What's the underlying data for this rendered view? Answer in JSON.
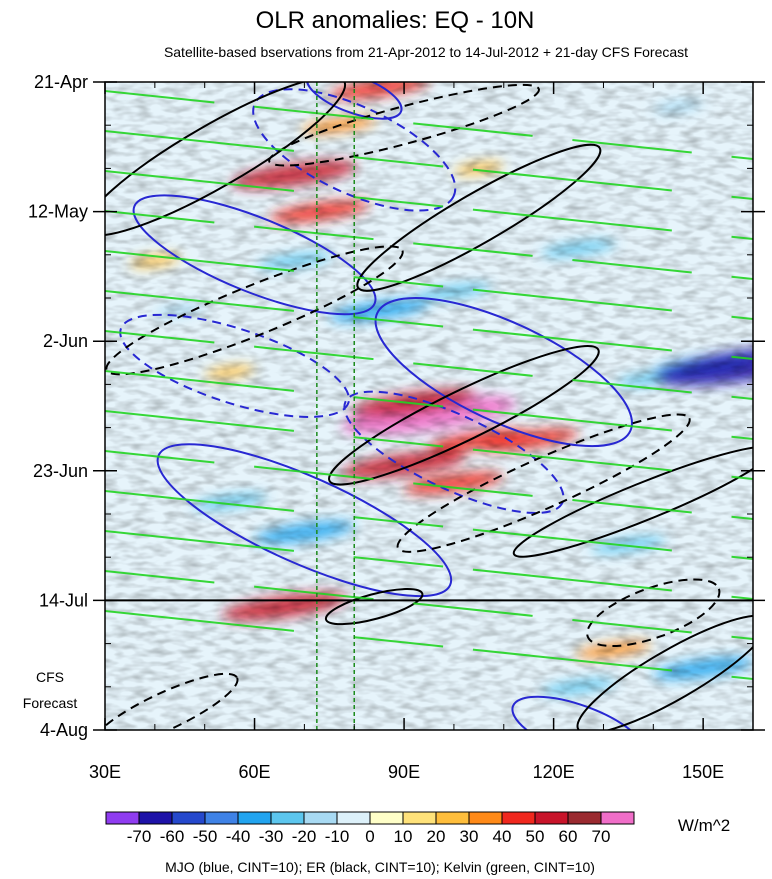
{
  "chart_data": {
    "type": "heatmap",
    "title": "OLR anomalies: EQ - 10N",
    "subtitle": "Satellite-based bservations from 21-Apr-2012 to 14-Jul-2012 + 21-day CFS Forecast",
    "x_axis": {
      "range": [
        30,
        160
      ],
      "unit": "degrees E",
      "ticks": [
        {
          "value": 30,
          "label": "30E"
        },
        {
          "value": 60,
          "label": "60E"
        },
        {
          "value": 90,
          "label": "90E"
        },
        {
          "value": 120,
          "label": "120E"
        },
        {
          "value": 150,
          "label": "150E"
        }
      ]
    },
    "y_axis": {
      "range": [
        "21-Apr-2012",
        "4-Aug-2012"
      ],
      "direction": "time increases downward",
      "ticks": [
        {
          "value": "2012-04-21",
          "label": "21-Apr"
        },
        {
          "value": "2012-05-12",
          "label": "12-May"
        },
        {
          "value": "2012-06-02",
          "label": "2-Jun"
        },
        {
          "value": "2012-06-23",
          "label": "23-Jun"
        },
        {
          "value": "2012-07-14",
          "label": "14-Jul"
        },
        {
          "value": "2012-08-04",
          "label": "4-Aug"
        }
      ]
    },
    "forecast": {
      "start": "2012-07-14",
      "label_line1": "CFS",
      "label_line2": "Forecast"
    },
    "reference_longitudes": [
      72.5,
      80
    ],
    "colorbar": {
      "unit": "W/m^2",
      "levels": [
        -70,
        -60,
        -50,
        -40,
        -30,
        -20,
        -10,
        0,
        10,
        20,
        30,
        40,
        50,
        60,
        70
      ],
      "level_labels": [
        "-70",
        "-60",
        "-50",
        "-40",
        "-30",
        "-20",
        "-10",
        "0",
        "10",
        "20",
        "30",
        "40",
        "50",
        "60",
        "70"
      ],
      "colors": [
        "#8f3cf0",
        "#1e12a8",
        "#2548cc",
        "#3f82e6",
        "#22a4ef",
        "#5cc6ee",
        "#a8daf3",
        "#ddf1fa",
        "#ffffc8",
        "#ffe27a",
        "#ffbe3c",
        "#ff8a18",
        "#f0281e",
        "#c8142a",
        "#9a2a30",
        "#f06ec8"
      ]
    },
    "contour_legend": "MJO (blue, CINT=10); ER (black, CINT=10); Kelvin (green, CINT=10)",
    "series": [
      {
        "name": "MJO",
        "color": "#2828d2",
        "cint": 10
      },
      {
        "name": "ER",
        "color": "#000000",
        "cint": 10
      },
      {
        "name": "Kelvin",
        "color": "#22d422",
        "cint": 10
      }
    ],
    "anomaly_features": [
      {
        "lon": 68,
        "date": "2012-05-06",
        "value": 50
      },
      {
        "lon": 73,
        "date": "2012-05-12",
        "value": 40
      },
      {
        "lon": 77,
        "date": "2012-04-28",
        "value": 30
      },
      {
        "lon": 85,
        "date": "2012-04-22",
        "value": 40
      },
      {
        "lon": 95,
        "date": "2012-06-14",
        "value": 70
      },
      {
        "lon": 92,
        "date": "2012-06-12",
        "value": 50
      },
      {
        "lon": 105,
        "date": "2012-06-18",
        "value": 40
      },
      {
        "lon": 115,
        "date": "2012-06-18",
        "value": 40
      },
      {
        "lon": 90,
        "date": "2012-06-22",
        "value": 50
      },
      {
        "lon": 100,
        "date": "2012-06-25",
        "value": 40
      },
      {
        "lon": 66,
        "date": "2012-07-15",
        "value": 50
      },
      {
        "lon": 132,
        "date": "2012-07-22",
        "value": 30
      },
      {
        "lon": 55,
        "date": "2012-06-07",
        "value": 20
      },
      {
        "lon": 40,
        "date": "2012-05-20",
        "value": 20
      },
      {
        "lon": 105,
        "date": "2012-05-05",
        "value": 20
      },
      {
        "lon": 85,
        "date": "2012-05-28",
        "value": -40
      },
      {
        "lon": 100,
        "date": "2012-05-25",
        "value": -30
      },
      {
        "lon": 68,
        "date": "2012-05-20",
        "value": -30
      },
      {
        "lon": 45,
        "date": "2012-05-28",
        "value": -20
      },
      {
        "lon": 125,
        "date": "2012-05-18",
        "value": -30
      },
      {
        "lon": 140,
        "date": "2012-06-08",
        "value": -30
      },
      {
        "lon": 150,
        "date": "2012-06-06",
        "value": -40
      },
      {
        "lon": 158,
        "date": "2012-06-06",
        "value": -70
      },
      {
        "lon": 55,
        "date": "2012-06-28",
        "value": -30
      },
      {
        "lon": 70,
        "date": "2012-07-03",
        "value": -40
      },
      {
        "lon": 135,
        "date": "2012-07-05",
        "value": -30
      },
      {
        "lon": 150,
        "date": "2012-07-25",
        "value": -40
      },
      {
        "lon": 125,
        "date": "2012-07-28",
        "value": -30
      },
      {
        "lon": 145,
        "date": "2012-04-25",
        "value": -20
      }
    ],
    "contours": [
      {
        "series": "MJO",
        "dashed": false,
        "lon": 60,
        "date": "2012-05-19",
        "rx_deg": 26,
        "ry_days": 6,
        "angle": 22
      },
      {
        "series": "MJO",
        "dashed": true,
        "lon": 80,
        "date": "2012-05-02",
        "rx_deg": 22,
        "ry_days": 7,
        "angle": 25
      },
      {
        "series": "MJO",
        "dashed": true,
        "lon": 56,
        "date": "2012-06-06",
        "rx_deg": 24,
        "ry_days": 6,
        "angle": 18
      },
      {
        "series": "MJO",
        "dashed": false,
        "lon": 110,
        "date": "2012-06-07",
        "rx_deg": 28,
        "ry_days": 8,
        "angle": 25
      },
      {
        "series": "MJO",
        "dashed": true,
        "lon": 100,
        "date": "2012-06-20",
        "rx_deg": 24,
        "ry_days": 6,
        "angle": 25
      },
      {
        "series": "MJO",
        "dashed": false,
        "lon": 70,
        "date": "2012-07-01",
        "rx_deg": 32,
        "ry_days": 7,
        "angle": 24
      },
      {
        "series": "MJO",
        "dashed": false,
        "lon": 80,
        "date": "2012-04-23",
        "rx_deg": 10,
        "ry_days": 3,
        "angle": 20
      },
      {
        "series": "MJO",
        "dashed": false,
        "lon": 125,
        "date": "2012-08-04",
        "rx_deg": 14,
        "ry_days": 4,
        "angle": 20
      },
      {
        "series": "ER",
        "dashed": false,
        "lon": 52,
        "date": "2012-05-03",
        "rx_deg": 30,
        "ry_days": 5,
        "angle": -30
      },
      {
        "series": "ER",
        "dashed": false,
        "lon": 105,
        "date": "2012-05-13",
        "rx_deg": 28,
        "ry_days": 4,
        "angle": -30
      },
      {
        "series": "ER",
        "dashed": true,
        "lon": 60,
        "date": "2012-05-28",
        "rx_deg": 32,
        "ry_days": 4,
        "angle": -22
      },
      {
        "series": "ER",
        "dashed": false,
        "lon": 102,
        "date": "2012-06-14",
        "rx_deg": 30,
        "ry_days": 4,
        "angle": -26
      },
      {
        "series": "ER",
        "dashed": true,
        "lon": 118,
        "date": "2012-06-25",
        "rx_deg": 32,
        "ry_days": 4,
        "angle": -24
      },
      {
        "series": "ER",
        "dashed": false,
        "lon": 138,
        "date": "2012-06-28",
        "rx_deg": 28,
        "ry_days": 3,
        "angle": -22
      },
      {
        "series": "ER",
        "dashed": true,
        "lon": 140,
        "date": "2012-07-16",
        "rx_deg": 14,
        "ry_days": 4,
        "angle": -20
      },
      {
        "series": "ER",
        "dashed": false,
        "lon": 144,
        "date": "2012-07-26",
        "rx_deg": 22,
        "ry_days": 4,
        "angle": -30
      },
      {
        "series": "ER",
        "dashed": true,
        "lon": 42,
        "date": "2012-08-01",
        "rx_deg": 16,
        "ry_days": 3,
        "angle": -25
      },
      {
        "series": "ER",
        "dashed": false,
        "lon": 84,
        "date": "2012-07-15",
        "rx_deg": 10,
        "ry_days": 2,
        "angle": -15
      },
      {
        "series": "ER",
        "dashed": true,
        "lon": 90,
        "date": "2012-04-28",
        "rx_deg": 28,
        "ry_days": 3,
        "angle": -15
      }
    ]
  }
}
